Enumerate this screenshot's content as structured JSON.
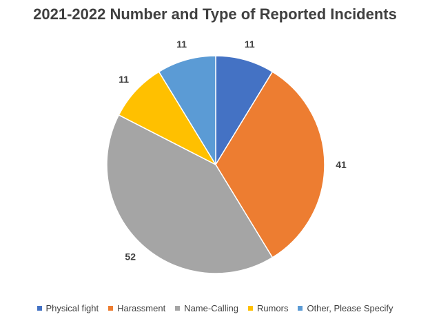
{
  "chart_data": {
    "type": "pie",
    "title": "2021-2022 Number and Type of Reported Incidents",
    "categories": [
      "Physical fight",
      "Harassment",
      "Name-Calling",
      "Rumors",
      "Other, Please Specify"
    ],
    "values": [
      11,
      41,
      52,
      11,
      11
    ],
    "data_labels": [
      "11",
      "41",
      "52",
      "11",
      "11"
    ],
    "colors": [
      "#4472c4",
      "#ed7d31",
      "#a5a5a5",
      "#ffc000",
      "#5b9bd5"
    ],
    "start_angle": "12 o'clock",
    "direction": "clockwise",
    "legend": "bottom"
  }
}
